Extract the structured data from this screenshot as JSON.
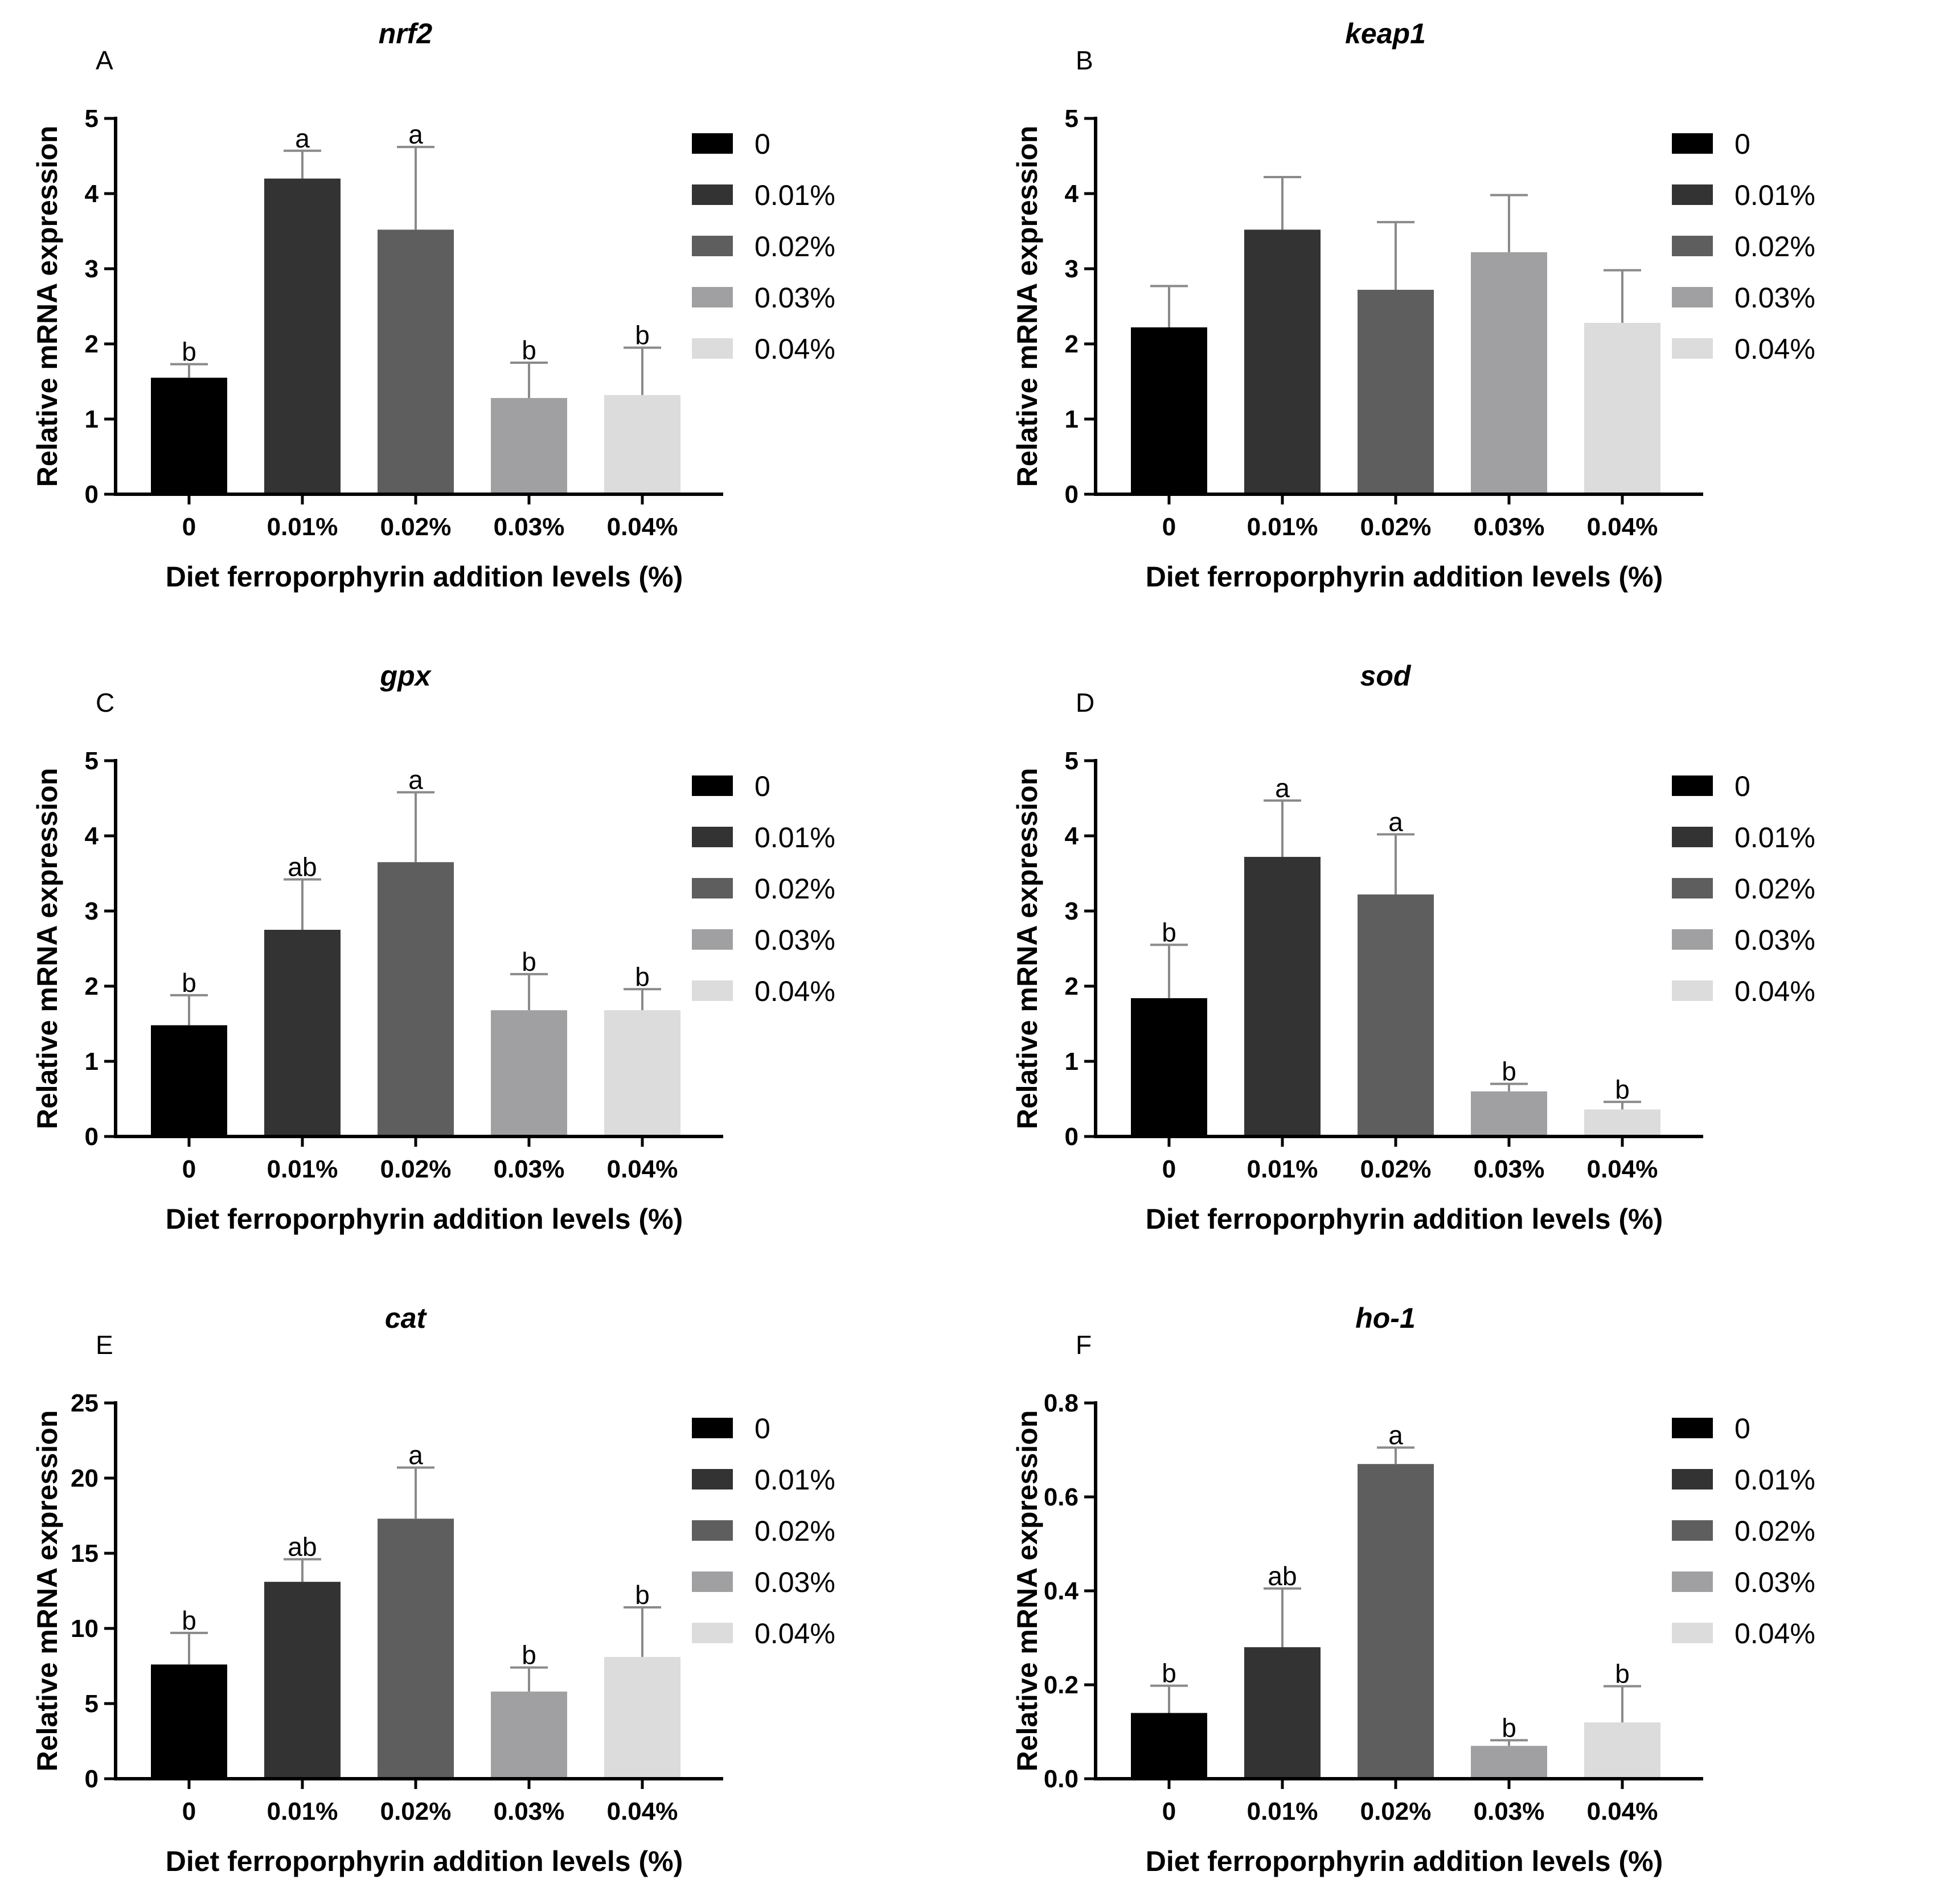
{
  "colors": {
    "series": [
      "#000000",
      "#333333",
      "#5e5e5e",
      "#a0a0a2",
      "#dcdcdc"
    ],
    "error_bar": "#8a8a8a",
    "axis": "#000000"
  },
  "chart_data": [
    {
      "type": "bar",
      "panel_letter": "A",
      "title": "nrf2",
      "ylabel": "Relative mRNA expression",
      "xlabel": "Diet ferroporphyrin addition levels (%)",
      "categories": [
        "0",
        "0.01%",
        "0.02%",
        "0.03%",
        "0.04%"
      ],
      "values": [
        1.55,
        4.2,
        3.52,
        1.28,
        1.32
      ],
      "errors": [
        0.18,
        0.37,
        1.1,
        0.47,
        0.63
      ],
      "significance": [
        "b",
        "a",
        "a",
        "b",
        "b"
      ],
      "ylim": [
        0,
        5
      ],
      "yticks": [
        "0",
        "1",
        "2",
        "3",
        "4",
        "5"
      ],
      "legend": [
        "0",
        "0.01%",
        "0.02%",
        "0.03%",
        "0.04%"
      ]
    },
    {
      "type": "bar",
      "panel_letter": "B",
      "title": "keap1",
      "ylabel": "Relative mRNA expression",
      "xlabel": "Diet ferroporphyrin addition levels (%)",
      "categories": [
        "0",
        "0.01%",
        "0.02%",
        "0.03%",
        "0.04%"
      ],
      "values": [
        2.22,
        3.52,
        2.72,
        3.22,
        2.28
      ],
      "errors": [
        0.55,
        0.7,
        0.9,
        0.76,
        0.7
      ],
      "significance": [
        "",
        "",
        "",
        "",
        ""
      ],
      "ylim": [
        0,
        5
      ],
      "yticks": [
        "0",
        "1",
        "2",
        "3",
        "4",
        "5"
      ],
      "legend": [
        "0",
        "0.01%",
        "0.02%",
        "0.03%",
        "0.04%"
      ]
    },
    {
      "type": "bar",
      "panel_letter": "C",
      "title": "gpx",
      "ylabel": "Relative mRNA expression",
      "xlabel": "Diet ferroporphyrin addition levels (%)",
      "categories": [
        "0",
        "0.01%",
        "0.02%",
        "0.03%",
        "0.04%"
      ],
      "values": [
        1.48,
        2.75,
        3.65,
        1.68,
        1.68
      ],
      "errors": [
        0.4,
        0.67,
        0.93,
        0.48,
        0.28
      ],
      "significance": [
        "b",
        "ab",
        "a",
        "b",
        "b"
      ],
      "ylim": [
        0,
        5
      ],
      "yticks": [
        "0",
        "1",
        "2",
        "3",
        "4",
        "5"
      ],
      "legend": [
        "0",
        "0.01%",
        "0.02%",
        "0.03%",
        "0.04%"
      ]
    },
    {
      "type": "bar",
      "panel_letter": "D",
      "title": "sod",
      "ylabel": "Relative mRNA expression",
      "xlabel": "Diet ferroporphyrin addition levels (%)",
      "categories": [
        "0",
        "0.01%",
        "0.02%",
        "0.03%",
        "0.04%"
      ],
      "values": [
        1.84,
        3.72,
        3.22,
        0.6,
        0.36
      ],
      "errors": [
        0.71,
        0.75,
        0.8,
        0.1,
        0.1
      ],
      "significance": [
        "b",
        "a",
        "a",
        "b",
        "b"
      ],
      "ylim": [
        0,
        5
      ],
      "yticks": [
        "0",
        "1",
        "2",
        "3",
        "4",
        "5"
      ],
      "legend": [
        "0",
        "0.01%",
        "0.02%",
        "0.03%",
        "0.04%"
      ]
    },
    {
      "type": "bar",
      "panel_letter": "E",
      "title": "cat",
      "ylabel": "Relative mRNA expression",
      "xlabel": "Diet ferroporphyrin addition levels (%)",
      "categories": [
        "0",
        "0.01%",
        "0.02%",
        "0.03%",
        "0.04%"
      ],
      "values": [
        7.6,
        13.1,
        17.3,
        5.8,
        8.1
      ],
      "errors": [
        2.1,
        1.5,
        3.4,
        1.6,
        3.3
      ],
      "significance": [
        "b",
        "ab",
        "a",
        "b",
        "b"
      ],
      "ylim": [
        0,
        25
      ],
      "yticks": [
        "0",
        "5",
        "10",
        "15",
        "20",
        "25"
      ],
      "legend": [
        "0",
        "0.01%",
        "0.02%",
        "0.03%",
        "0.04%"
      ]
    },
    {
      "type": "bar",
      "panel_letter": "F",
      "title": "ho-1",
      "ylabel": "Relative mRNA expression",
      "xlabel": "Diet ferroporphyrin addition levels (%)",
      "categories": [
        "0",
        "0.01%",
        "0.02%",
        "0.03%",
        "0.04%"
      ],
      "values": [
        0.14,
        0.28,
        0.67,
        0.07,
        0.12
      ],
      "errors": [
        0.058,
        0.125,
        0.035,
        0.012,
        0.077
      ],
      "significance": [
        "b",
        "ab",
        "a",
        "b",
        "b"
      ],
      "ylim": [
        0,
        0.8
      ],
      "yticks": [
        "0.0",
        "0.2",
        "0.4",
        "0.6",
        "0.8"
      ],
      "legend": [
        "0",
        "0.01%",
        "0.02%",
        "0.03%",
        "0.04%"
      ]
    }
  ]
}
